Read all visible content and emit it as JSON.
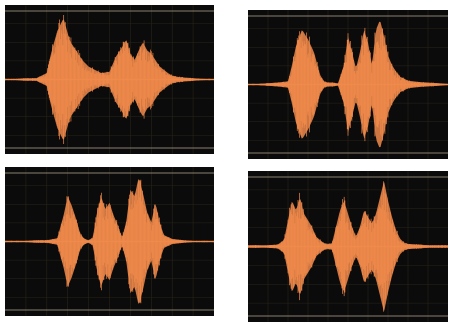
{
  "colors": {
    "waveform": "#f08a4b",
    "background": "#0b0b0b",
    "grid": "#2a2418",
    "rule": "#8a8070"
  },
  "chart_data": [
    {
      "type": "area",
      "x": [
        0.0,
        0.05,
        0.1,
        0.15,
        0.2,
        0.22,
        0.25,
        0.28,
        0.31,
        0.34,
        0.37,
        0.4,
        0.43,
        0.46,
        0.5,
        0.53,
        0.56,
        0.58,
        0.6,
        0.62,
        0.64,
        0.66,
        0.68,
        0.7,
        0.72,
        0.74,
        0.76,
        0.78,
        0.8,
        0.83,
        0.86,
        0.9,
        0.95,
        1.0
      ],
      "values": [
        0.01,
        0.01,
        0.02,
        0.02,
        0.1,
        0.4,
        0.75,
        0.95,
        0.6,
        0.45,
        0.3,
        0.2,
        0.15,
        0.1,
        0.12,
        0.35,
        0.5,
        0.62,
        0.4,
        0.3,
        0.45,
        0.58,
        0.45,
        0.4,
        0.3,
        0.2,
        0.15,
        0.1,
        0.06,
        0.04,
        0.03,
        0.02,
        0.01,
        0.01
      ],
      "ylim": [
        -1,
        1
      ],
      "grid": true
    },
    {
      "type": "area",
      "x": [
        0.0,
        0.05,
        0.1,
        0.15,
        0.2,
        0.22,
        0.24,
        0.27,
        0.3,
        0.33,
        0.36,
        0.38,
        0.4,
        0.42,
        0.45,
        0.48,
        0.5,
        0.52,
        0.54,
        0.56,
        0.58,
        0.6,
        0.62,
        0.64,
        0.66,
        0.68,
        0.7,
        0.72,
        0.74,
        0.76,
        0.8,
        0.85,
        0.9,
        0.95,
        1.0
      ],
      "values": [
        0.01,
        0.01,
        0.02,
        0.03,
        0.05,
        0.3,
        0.6,
        0.85,
        0.7,
        0.5,
        0.15,
        0.05,
        0.03,
        0.03,
        0.02,
        0.3,
        0.75,
        0.5,
        0.25,
        0.5,
        0.85,
        0.65,
        0.3,
        0.85,
        1.0,
        0.75,
        0.45,
        0.3,
        0.2,
        0.12,
        0.06,
        0.04,
        0.03,
        0.02,
        0.01
      ],
      "ylim": [
        -1,
        1
      ],
      "grid": true
    },
    {
      "type": "area",
      "x": [
        0.0,
        0.05,
        0.1,
        0.15,
        0.2,
        0.25,
        0.28,
        0.3,
        0.32,
        0.34,
        0.36,
        0.38,
        0.4,
        0.42,
        0.44,
        0.46,
        0.48,
        0.5,
        0.52,
        0.54,
        0.56,
        0.58,
        0.6,
        0.62,
        0.64,
        0.66,
        0.68,
        0.7,
        0.72,
        0.74,
        0.76,
        0.8,
        0.85,
        0.9,
        0.95,
        1.0
      ],
      "values": [
        0.01,
        0.01,
        0.01,
        0.02,
        0.02,
        0.05,
        0.4,
        0.7,
        0.55,
        0.35,
        0.12,
        0.04,
        0.02,
        0.06,
        0.45,
        0.7,
        0.5,
        0.6,
        0.4,
        0.25,
        0.06,
        0.3,
        0.8,
        0.7,
        1.0,
        0.75,
        0.45,
        0.3,
        0.6,
        0.3,
        0.1,
        0.04,
        0.02,
        0.01,
        0.01,
        0.01
      ],
      "ylim": [
        -1,
        1
      ],
      "grid": true
    },
    {
      "type": "area",
      "x": [
        0.0,
        0.05,
        0.1,
        0.15,
        0.18,
        0.2,
        0.22,
        0.24,
        0.26,
        0.28,
        0.3,
        0.32,
        0.34,
        0.36,
        0.38,
        0.4,
        0.42,
        0.44,
        0.46,
        0.48,
        0.5,
        0.52,
        0.54,
        0.56,
        0.58,
        0.6,
        0.62,
        0.64,
        0.66,
        0.68,
        0.7,
        0.72,
        0.74,
        0.76,
        0.78,
        0.8,
        0.85,
        0.9,
        0.95,
        1.0
      ],
      "values": [
        0.02,
        0.02,
        0.02,
        0.03,
        0.1,
        0.4,
        0.7,
        0.55,
        0.75,
        0.5,
        0.4,
        0.3,
        0.15,
        0.1,
        0.05,
        0.04,
        0.05,
        0.3,
        0.55,
        0.7,
        0.5,
        0.3,
        0.15,
        0.3,
        0.55,
        0.45,
        0.35,
        0.5,
        0.75,
        1.0,
        0.7,
        0.45,
        0.25,
        0.12,
        0.06,
        0.04,
        0.03,
        0.02,
        0.02,
        0.02
      ],
      "ylim": [
        -1,
        1
      ],
      "grid": true
    }
  ]
}
